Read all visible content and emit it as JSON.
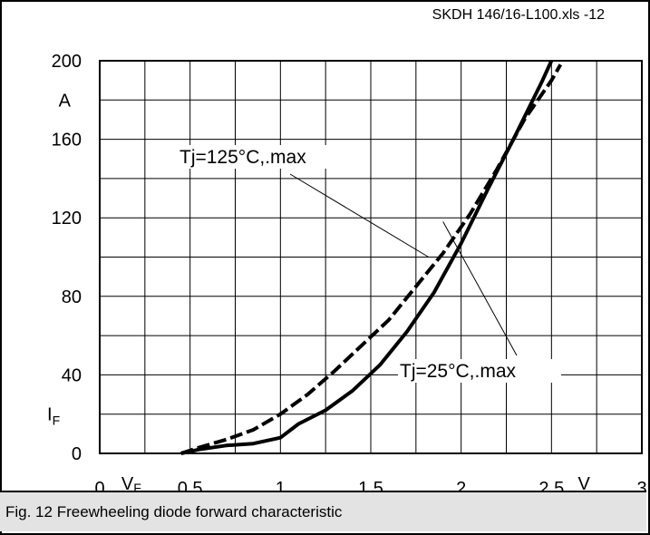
{
  "file_reference": "SKDH 146/16-L100.xls -12",
  "caption": "Fig. 12 Freewheeling diode forward characteristic",
  "colors": {
    "line": "#000000",
    "grid": "#000000",
    "caption_bg": "#e3e3e3"
  },
  "chart_data": {
    "type": "line",
    "title": "",
    "xlabel": "V",
    "xlabel_sub": "F",
    "x_unit": "V",
    "ylabel": "I",
    "ylabel_sub": "F",
    "y_unit": "A",
    "xlim": [
      0,
      3
    ],
    "ylim": [
      0,
      200
    ],
    "grid": true,
    "x_ticks": [
      {
        "value": 0,
        "label": "0"
      },
      {
        "value": 0.5,
        "label": "0,5"
      },
      {
        "value": 1,
        "label": "1"
      },
      {
        "value": 1.5,
        "label": "1,5"
      },
      {
        "value": 2,
        "label": "2"
      },
      {
        "value": 2.5,
        "label": "2,5"
      },
      {
        "value": 3,
        "label": "3"
      }
    ],
    "y_ticks": [
      {
        "value": 0,
        "label": "0"
      },
      {
        "value": 40,
        "label": "40"
      },
      {
        "value": 80,
        "label": "80"
      },
      {
        "value": 120,
        "label": "120"
      },
      {
        "value": 160,
        "label": "160"
      },
      {
        "value": 200,
        "label": "200"
      }
    ],
    "series": [
      {
        "name": "Tj=25°C,.max",
        "style": "solid",
        "x": [
          0.45,
          0.55,
          0.7,
          0.85,
          1.0,
          1.1,
          1.25,
          1.4,
          1.55,
          1.7,
          1.85,
          2.0,
          2.15,
          2.3,
          2.45,
          2.5
        ],
        "y": [
          0,
          2,
          4,
          5,
          8,
          15,
          22,
          32,
          45,
          62,
          82,
          107,
          135,
          162,
          190,
          200
        ]
      },
      {
        "name": "Tj=125°C,.max",
        "style": "dashed",
        "x": [
          0.45,
          0.55,
          0.7,
          0.85,
          1.0,
          1.15,
          1.3,
          1.45,
          1.6,
          1.75,
          1.9,
          2.05,
          2.2,
          2.35,
          2.5,
          2.55
        ],
        "y": [
          0,
          3,
          7,
          12,
          20,
          30,
          42,
          55,
          68,
          85,
          102,
          122,
          145,
          170,
          190,
          198
        ]
      }
    ],
    "annotations": [
      {
        "text": "Tj=125°C,.max",
        "series": 1
      },
      {
        "text": "Tj=25°C,.max",
        "series": 0
      }
    ]
  }
}
